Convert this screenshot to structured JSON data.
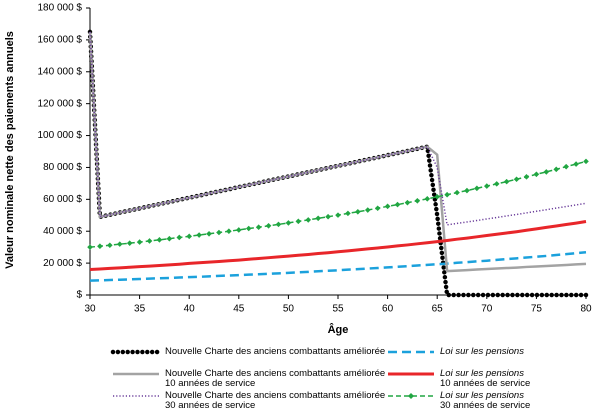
{
  "chart_data": {
    "type": "line",
    "y_label": "Valeur nominale nette des paiements annuels",
    "x_label": "Âge",
    "x": [
      30,
      31,
      32,
      33,
      34,
      35,
      36,
      37,
      38,
      39,
      40,
      41,
      42,
      43,
      44,
      45,
      46,
      47,
      48,
      49,
      50,
      51,
      52,
      53,
      54,
      55,
      56,
      57,
      58,
      59,
      60,
      61,
      62,
      63,
      64,
      65,
      66,
      67,
      68,
      69,
      70,
      71,
      72,
      73,
      74,
      75,
      76,
      77,
      78,
      79,
      80
    ],
    "xlim": [
      30,
      80
    ],
    "xticks": [
      30,
      35,
      40,
      45,
      50,
      55,
      60,
      65,
      70,
      75,
      80
    ],
    "ylim": [
      0,
      180000
    ],
    "yticks": [
      {
        "value": 0,
        "label": "$"
      },
      {
        "value": 20000,
        "label": "20 000 $"
      },
      {
        "value": 40000,
        "label": "40 000 $"
      },
      {
        "value": 60000,
        "label": "60 000 $"
      },
      {
        "value": 80000,
        "label": "80 000 $"
      },
      {
        "value": 100000,
        "label": "100 000 $"
      },
      {
        "value": 120000,
        "label": "120 000 $"
      },
      {
        "value": 140000,
        "label": "140 000 $"
      },
      {
        "value": 160000,
        "label": "160 000 $"
      },
      {
        "value": 180000,
        "label": "180 000 $"
      }
    ],
    "grid": false,
    "series": [
      {
        "name": "Nouvelle Charte des anciens combattants améliorée",
        "color": "#000000",
        "style": "big-dots",
        "legend_italic": false,
        "values": [
          165000,
          49000,
          50300,
          51700,
          53000,
          54300,
          55700,
          57000,
          58300,
          59700,
          61000,
          62300,
          63700,
          65000,
          66300,
          67700,
          69000,
          70300,
          71700,
          73000,
          74300,
          75700,
          77000,
          78300,
          79700,
          81000,
          82300,
          83700,
          85000,
          86300,
          87700,
          89000,
          90300,
          91700,
          93000,
          50000,
          0,
          0,
          0,
          0,
          0,
          0,
          0,
          0,
          0,
          0,
          0,
          0,
          0,
          0,
          0
        ]
      },
      {
        "name": "Loi sur les pensions",
        "color": "#1ba1dc",
        "style": "dashed",
        "legend_italic": true,
        "values": [
          9000,
          9200,
          9400,
          9600,
          9800,
          10000,
          10300,
          10500,
          10700,
          11000,
          11200,
          11400,
          11700,
          12000,
          12200,
          12500,
          12800,
          13000,
          13300,
          13600,
          13900,
          14200,
          14500,
          14900,
          15200,
          15500,
          15900,
          16200,
          16600,
          16900,
          17300,
          17700,
          18100,
          18500,
          18900,
          19300,
          19700,
          20200,
          20600,
          21100,
          21500,
          22000,
          22500,
          23000,
          23500,
          24000,
          24500,
          25100,
          25600,
          26200,
          26800
        ]
      },
      {
        "name": "Nouvelle Charte des anciens combattants améliorée\n10 années de service",
        "color": "#a3a3a3",
        "style": "solid",
        "legend_italic": false,
        "values": [
          165000,
          49000,
          50300,
          51700,
          53000,
          54300,
          55700,
          57000,
          58300,
          59700,
          61000,
          62300,
          63700,
          65000,
          66300,
          67700,
          69000,
          70300,
          71700,
          73000,
          74300,
          75700,
          77000,
          78300,
          79700,
          81000,
          82300,
          83700,
          85000,
          86300,
          87700,
          89000,
          90300,
          91700,
          93000,
          88000,
          15000,
          15300,
          15600,
          16000,
          16300,
          16600,
          16900,
          17200,
          17600,
          17900,
          18200,
          18500,
          18800,
          19200,
          19500
        ]
      },
      {
        "name": "Loi sur les pensions\n10 années de service",
        "color": "#e8262a",
        "style": "solid-thick",
        "legend_italic": true,
        "values": [
          16000,
          16300,
          16700,
          17000,
          17400,
          17800,
          18100,
          18500,
          18900,
          19300,
          19800,
          20200,
          20600,
          21000,
          21500,
          21900,
          22400,
          22900,
          23400,
          23900,
          24400,
          24900,
          25400,
          26000,
          26500,
          27100,
          27700,
          28300,
          28900,
          29500,
          30100,
          30800,
          31400,
          32100,
          32800,
          33500,
          34200,
          35000,
          35700,
          36500,
          37300,
          38100,
          38900,
          39700,
          40600,
          41500,
          42400,
          43300,
          44200,
          45100,
          46100
        ]
      },
      {
        "name": "Nouvelle Charte des anciens combattants améliorée\n30 années de service",
        "color": "#6a3d9a",
        "style": "dotted",
        "legend_italic": false,
        "values": [
          165000,
          49000,
          50300,
          51700,
          53000,
          54300,
          55700,
          57000,
          58300,
          59700,
          61000,
          62300,
          63700,
          65000,
          66300,
          67700,
          69000,
          70300,
          71700,
          73000,
          74300,
          75700,
          77000,
          78300,
          79700,
          81000,
          82300,
          83700,
          85000,
          86300,
          87700,
          89000,
          90300,
          91700,
          93000,
          80000,
          44000,
          44900,
          45800,
          46700,
          47700,
          48600,
          49600,
          50500,
          51500,
          52500,
          53500,
          54500,
          55500,
          56500,
          57500
        ]
      },
      {
        "name": "Loi sur les pensions\n30 années de service",
        "color": "#21a642",
        "style": "dashed-diamond",
        "legend_italic": true,
        "values": [
          30000,
          30600,
          31200,
          31900,
          32500,
          33200,
          33900,
          34600,
          35300,
          36100,
          36800,
          37600,
          38400,
          39200,
          40000,
          40800,
          41700,
          42500,
          43400,
          44300,
          45200,
          46200,
          47100,
          48100,
          49100,
          50100,
          51200,
          52200,
          53300,
          54400,
          55600,
          56700,
          57900,
          59100,
          60300,
          61600,
          62900,
          64200,
          65500,
          66900,
          68300,
          69700,
          71100,
          72600,
          74100,
          75700,
          77200,
          78800,
          80500,
          82100,
          83800
        ]
      }
    ]
  }
}
